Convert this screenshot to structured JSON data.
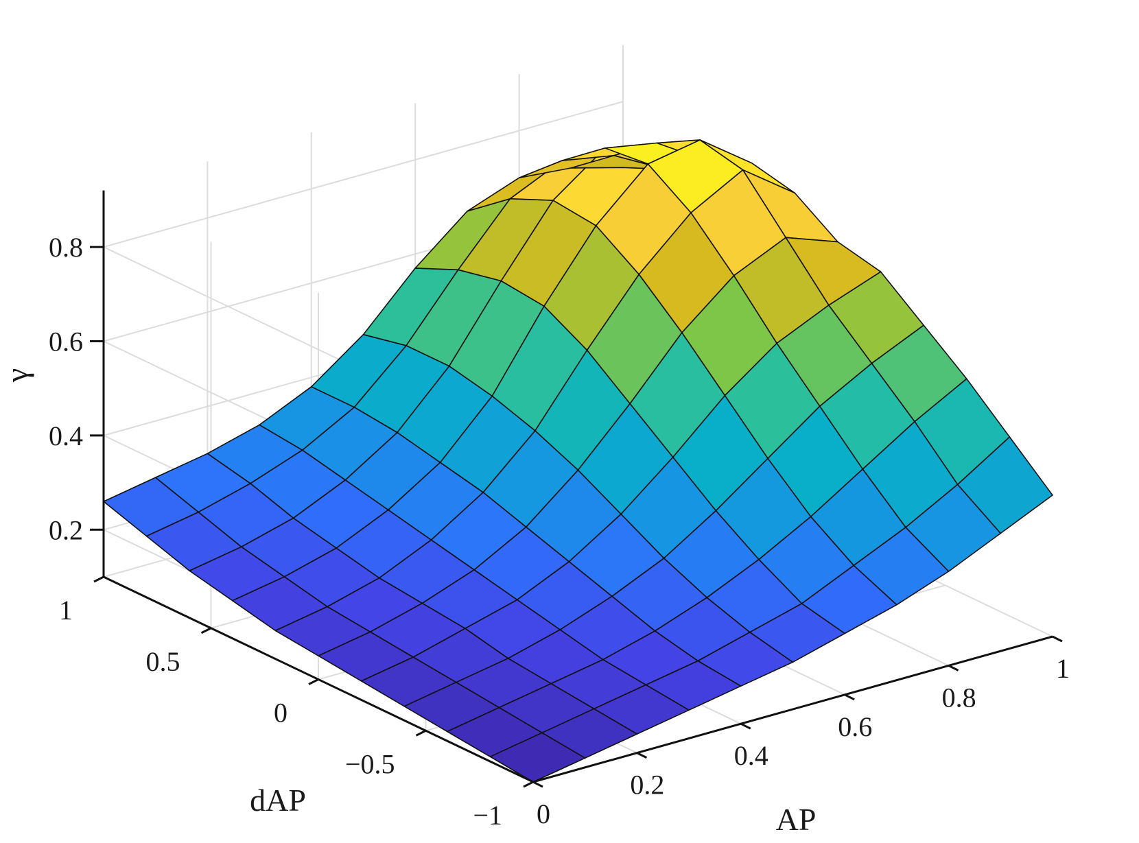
{
  "chart_data": {
    "type": "surface",
    "xlabel": "AP",
    "ylabel": "dAP",
    "zlabel": "γ",
    "xlim": [
      0,
      1
    ],
    "ylim": [
      -1,
      1
    ],
    "zlim": [
      0.1,
      0.9
    ],
    "xticks": [
      0,
      0.2,
      0.4,
      0.6,
      0.8,
      1
    ],
    "xtick_labels": [
      "0",
      "0.2",
      "0.4",
      "0.6",
      "0.8",
      "1"
    ],
    "yticks": [
      -1,
      -0.5,
      0,
      0.5,
      1
    ],
    "ytick_labels": [
      "−1",
      "−0.5",
      "0",
      "0.5",
      "1"
    ],
    "zticks": [
      0.2,
      0.4,
      0.6,
      0.8
    ],
    "ztick_labels": [
      "0.2",
      "0.4",
      "0.6",
      "0.8"
    ],
    "grid": true,
    "colormap": [
      "#3e26a8",
      "#4443e6",
      "#2e72fc",
      "#1597e0",
      "#08b1c6",
      "#2fc098",
      "#7fc646",
      "#d6ba1f",
      "#fed23a",
      "#f9fb15"
    ],
    "x": [
      0,
      0.1,
      0.2,
      0.3,
      0.4,
      0.5,
      0.6,
      0.7,
      0.8,
      0.9,
      1.0
    ],
    "y": [
      -1,
      -0.8,
      -0.6,
      -0.4,
      -0.2,
      0,
      0.2,
      0.4,
      0.6,
      0.8,
      1.0
    ],
    "z": [
      [
        0.1,
        0.12,
        0.14,
        0.16,
        0.18,
        0.2,
        0.23,
        0.26,
        0.3,
        0.35,
        0.4
      ],
      [
        0.11,
        0.13,
        0.15,
        0.17,
        0.19,
        0.22,
        0.25,
        0.3,
        0.35,
        0.41,
        0.48
      ],
      [
        0.12,
        0.14,
        0.16,
        0.18,
        0.21,
        0.25,
        0.3,
        0.36,
        0.43,
        0.5,
        0.56
      ],
      [
        0.13,
        0.15,
        0.17,
        0.2,
        0.24,
        0.29,
        0.36,
        0.44,
        0.52,
        0.58,
        0.63
      ],
      [
        0.14,
        0.16,
        0.19,
        0.22,
        0.27,
        0.34,
        0.43,
        0.53,
        0.61,
        0.66,
        0.7
      ],
      [
        0.15,
        0.17,
        0.2,
        0.24,
        0.3,
        0.39,
        0.5,
        0.62,
        0.71,
        0.76,
        0.72
      ],
      [
        0.16,
        0.18,
        0.21,
        0.26,
        0.33,
        0.43,
        0.57,
        0.7,
        0.8,
        0.86,
        0.78
      ],
      [
        0.18,
        0.2,
        0.23,
        0.28,
        0.35,
        0.46,
        0.62,
        0.76,
        0.86,
        0.88,
        0.8
      ],
      [
        0.2,
        0.22,
        0.25,
        0.3,
        0.37,
        0.48,
        0.63,
        0.77,
        0.85,
        0.83,
        0.76
      ],
      [
        0.23,
        0.25,
        0.28,
        0.32,
        0.38,
        0.48,
        0.61,
        0.73,
        0.78,
        0.76,
        0.7
      ],
      [
        0.26,
        0.28,
        0.3,
        0.33,
        0.38,
        0.46,
        0.57,
        0.66,
        0.7,
        0.69,
        0.66
      ]
    ]
  }
}
